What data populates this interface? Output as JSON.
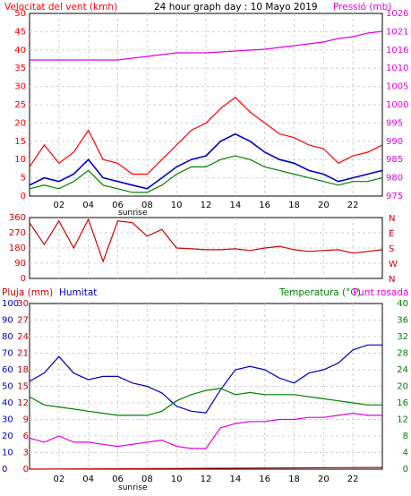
{
  "header": {
    "wind_label": "Velocitat del vent (kmh)",
    "title": "24 hour graph day : 10 Mayo 2019",
    "pressure_label": "Pressió (mb)"
  },
  "bottom_header": {
    "rain_label": "Pluja (mm)",
    "humidity_label": "Humitat",
    "temp_label": "Temperatura (°C)",
    "dew_label": "Punt rosada"
  },
  "sunrise_label": "sunrise",
  "colors": {
    "wind_gust": "#ff0000",
    "wind_avg": "#008000",
    "wind_mean": "#0000c0",
    "pressure": "#e000e0",
    "direction": "#d00000",
    "humidity": "#0000c0",
    "temperature": "#008000",
    "dew": "#e000e0",
    "rain": "#c00000",
    "grid": "#d0d0d0"
  },
  "chart_data": [
    {
      "type": "line",
      "name": "wind-pressure",
      "title": "24 hour graph day : 10 Mayo 2019",
      "x_ticks": [
        "02",
        "04",
        "06",
        "08",
        "10",
        "12",
        "14",
        "16",
        "18",
        "20",
        "22"
      ],
      "left_axis": {
        "label": "Velocitat del vent (kmh)",
        "ticks": [
          0,
          5,
          10,
          15,
          20,
          25,
          30,
          35,
          40,
          45,
          50
        ],
        "range": [
          0,
          50
        ]
      },
      "right_axis": {
        "label": "Pressió (mb)",
        "ticks": [
          975,
          980,
          985,
          990,
          995,
          1000,
          1005,
          1010,
          1016,
          1021,
          1026
        ],
        "range": [
          975,
          1026
        ]
      },
      "pressure": {
        "x": [
          0,
          2,
          4,
          6,
          7,
          8,
          9,
          10,
          12,
          14,
          16,
          18,
          20,
          21,
          22,
          23,
          24
        ],
        "y": [
          1013,
          1013,
          1013,
          1013,
          1013.5,
          1014,
          1014.5,
          1015,
          1015,
          1015.5,
          1016,
          1017,
          1018,
          1019,
          1019.5,
          1020.5,
          1021
        ]
      },
      "wind_mean": {
        "x": [
          0,
          1,
          2,
          3,
          4,
          5,
          6,
          7,
          8,
          9,
          10,
          11,
          12,
          13,
          14,
          15,
          16,
          17,
          18,
          19,
          20,
          21,
          22,
          23,
          24
        ],
        "y": [
          3,
          5,
          4,
          6,
          10,
          5,
          4,
          3,
          2,
          5,
          8,
          10,
          11,
          15,
          17,
          15,
          12,
          10,
          9,
          7,
          6,
          4,
          5,
          6,
          7
        ]
      },
      "wind_gust": {
        "x": [
          0,
          1,
          2,
          3,
          4,
          5,
          6,
          7,
          8,
          9,
          10,
          11,
          12,
          13,
          14,
          15,
          16,
          17,
          18,
          19,
          20,
          21,
          22,
          23,
          24
        ],
        "y": [
          8,
          14,
          9,
          12,
          18,
          10,
          9,
          6,
          6,
          10,
          14,
          18,
          20,
          24,
          27,
          23,
          20,
          17,
          16,
          14,
          13,
          9,
          11,
          12,
          14
        ]
      },
      "wind_avg": {
        "x": [
          0,
          1,
          2,
          3,
          4,
          5,
          6,
          7,
          8,
          9,
          10,
          11,
          12,
          13,
          14,
          15,
          16,
          17,
          18,
          19,
          20,
          21,
          22,
          23,
          24
        ],
        "y": [
          2,
          3,
          2,
          4,
          7,
          3,
          2,
          1,
          1,
          3,
          6,
          8,
          8,
          10,
          11,
          10,
          8,
          7,
          6,
          5,
          4,
          3,
          4,
          4,
          5
        ]
      }
    },
    {
      "type": "line",
      "name": "wind-direction",
      "left_axis": {
        "ticks": [
          0,
          90,
          180,
          270,
          360
        ],
        "range": [
          0,
          360
        ]
      },
      "right_axis": {
        "labels": [
          "N",
          "W",
          "S",
          "E",
          "N"
        ]
      },
      "direction": {
        "x": [
          0,
          1,
          2,
          3,
          4,
          5,
          6,
          7,
          8,
          9,
          10,
          11,
          12,
          13,
          14,
          15,
          16,
          17,
          18,
          19,
          20,
          21,
          22,
          23,
          24
        ],
        "y": [
          330,
          200,
          340,
          180,
          350,
          100,
          340,
          330,
          250,
          290,
          180,
          175,
          170,
          170,
          175,
          165,
          180,
          190,
          170,
          160,
          165,
          170,
          150,
          160,
          170
        ]
      }
    },
    {
      "type": "line",
      "name": "rain-humidity-temp",
      "rain_axis": {
        "label": "Pluja (mm)",
        "ticks": [
          0,
          3,
          6,
          9,
          12,
          15,
          18,
          21,
          24,
          27,
          30
        ],
        "range": [
          0,
          30
        ]
      },
      "humidity_axis": {
        "label": "Humitat",
        "ticks": [
          0,
          10,
          20,
          30,
          40,
          50,
          60,
          70,
          80,
          90,
          100
        ],
        "range": [
          0,
          100
        ]
      },
      "temp_axis": {
        "label": "Temperatura (°C)",
        "ticks": [
          0,
          4,
          8,
          12,
          16,
          20,
          24,
          28,
          32,
          36,
          40
        ],
        "range": [
          0,
          40
        ]
      },
      "humidity": {
        "x": [
          0,
          1,
          2,
          3,
          4,
          5,
          6,
          7,
          8,
          9,
          10,
          11,
          12,
          13,
          14,
          15,
          16,
          17,
          18,
          19,
          20,
          21,
          22,
          23,
          24
        ],
        "y": [
          53,
          58,
          68,
          58,
          54,
          56,
          56,
          52,
          50,
          46,
          38,
          35,
          34,
          48,
          60,
          62,
          60,
          55,
          52,
          58,
          60,
          64,
          72,
          75,
          75
        ]
      },
      "temperature": {
        "x": [
          0,
          1,
          2,
          3,
          4,
          5,
          6,
          7,
          8,
          9,
          10,
          11,
          12,
          13,
          14,
          15,
          16,
          17,
          18,
          19,
          20,
          21,
          22,
          23,
          24
        ],
        "y": [
          17.5,
          15.5,
          15,
          14.5,
          14,
          13.5,
          13,
          13,
          13,
          14,
          16.5,
          18,
          19,
          19.5,
          18,
          18.5,
          18,
          18,
          18,
          17.5,
          17,
          16.5,
          16,
          15.5,
          15.5
        ]
      },
      "dew": {
        "x": [
          0,
          1,
          2,
          3,
          4,
          5,
          6,
          7,
          8,
          9,
          10,
          11,
          12,
          13,
          14,
          15,
          16,
          17,
          18,
          19,
          20,
          21,
          22,
          23,
          24
        ],
        "y": [
          7.5,
          6.5,
          8,
          6.5,
          6.5,
          6,
          5.5,
          6,
          6.5,
          7,
          5.5,
          5,
          5,
          10,
          11,
          11.5,
          11.5,
          12,
          12,
          12.5,
          12.5,
          13,
          13.5,
          13,
          13
        ]
      },
      "rain": {
        "x": [
          0,
          24
        ],
        "y": [
          0,
          0.3
        ]
      }
    }
  ]
}
